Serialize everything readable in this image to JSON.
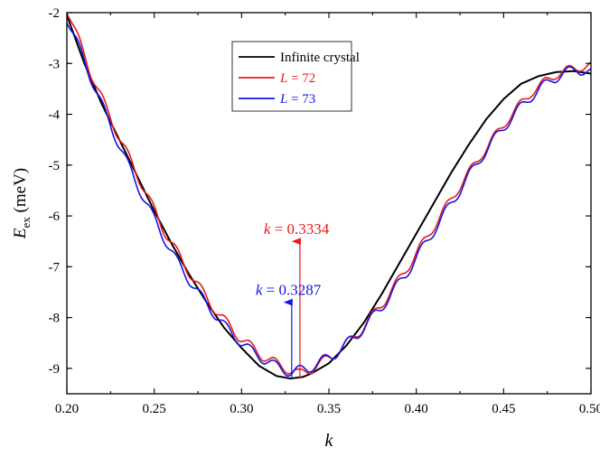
{
  "chart_data": {
    "type": "line",
    "title": "",
    "xlabel": "k",
    "ylabel_main": "E",
    "ylabel_sub": "ex",
    "ylabel_unit": "(meV)",
    "xlim": [
      0.2,
      0.5
    ],
    "ylim": [
      -9.5,
      -2
    ],
    "xticks": [
      "0.20",
      "0.25",
      "0.30",
      "0.35",
      "0.40",
      "0.45",
      "0.50"
    ],
    "xtick_values": [
      0.2,
      0.25,
      0.3,
      0.35,
      0.4,
      0.45,
      0.5
    ],
    "yticks": [
      "-2",
      "-3",
      "-4",
      "-5",
      "-6",
      "-7",
      "-8",
      "-9"
    ],
    "ytick_values": [
      -2,
      -3,
      -4,
      -5,
      -6,
      -7,
      -8,
      -9
    ],
    "grid": false,
    "legend_position": "top-center",
    "series": [
      {
        "name": "Infinite crystal",
        "color": "#000000",
        "x": [
          0.2,
          0.21,
          0.22,
          0.23,
          0.24,
          0.25,
          0.26,
          0.27,
          0.28,
          0.29,
          0.3,
          0.31,
          0.32,
          0.328,
          0.335,
          0.34,
          0.35,
          0.36,
          0.37,
          0.38,
          0.39,
          0.4,
          0.41,
          0.42,
          0.43,
          0.44,
          0.45,
          0.46,
          0.47,
          0.48,
          0.49,
          0.5
        ],
        "y": [
          -2.05,
          -3.0,
          -3.8,
          -4.5,
          -5.2,
          -5.9,
          -6.55,
          -7.15,
          -7.7,
          -8.2,
          -8.6,
          -8.95,
          -9.15,
          -9.2,
          -9.17,
          -9.1,
          -8.9,
          -8.55,
          -8.1,
          -7.55,
          -6.95,
          -6.35,
          -5.75,
          -5.15,
          -4.6,
          -4.1,
          -3.7,
          -3.4,
          -3.25,
          -3.17,
          -3.15,
          -3.2
        ]
      },
      {
        "name_prefix": "L",
        "name_suffix": " = 72",
        "color": "#e8191c",
        "x": [
          0.2,
          0.214,
          0.228,
          0.242,
          0.256,
          0.27,
          0.284,
          0.298,
          0.312,
          0.326,
          0.333,
          0.34,
          0.354,
          0.368,
          0.382,
          0.396,
          0.41,
          0.424,
          0.438,
          0.452,
          0.466,
          0.48,
          0.494,
          0.5
        ],
        "y": [
          -2.0,
          -3.3,
          -4.4,
          -5.4,
          -6.4,
          -7.2,
          -7.9,
          -8.45,
          -8.85,
          -9.1,
          -9.2,
          -9.1,
          -8.8,
          -8.35,
          -7.75,
          -7.05,
          -6.3,
          -5.55,
          -4.85,
          -4.2,
          -3.65,
          -3.3,
          -3.15,
          -3.15
        ],
        "oscillation_amplitude": 0.18,
        "oscillation_period": 0.014
      },
      {
        "name_prefix": "L",
        "name_suffix": " = 73",
        "color": "#1515e6",
        "x": [
          0.2,
          0.207,
          0.221,
          0.235,
          0.249,
          0.263,
          0.277,
          0.291,
          0.305,
          0.319,
          0.3287,
          0.338,
          0.352,
          0.366,
          0.38,
          0.394,
          0.408,
          0.422,
          0.436,
          0.45,
          0.464,
          0.478,
          0.492,
          0.5
        ],
        "y": [
          -2.2,
          -2.8,
          -4.0,
          -5.1,
          -6.1,
          -7.0,
          -7.7,
          -8.3,
          -8.75,
          -9.05,
          -9.18,
          -9.1,
          -8.85,
          -8.45,
          -7.9,
          -7.25,
          -6.5,
          -5.75,
          -5.0,
          -4.35,
          -3.8,
          -3.4,
          -3.2,
          -3.3
        ],
        "oscillation_amplitude": 0.2,
        "oscillation_period": 0.014
      }
    ],
    "annotations": [
      {
        "prefix": "k",
        "text": " = 0.3334",
        "color": "#e8191c",
        "x": 0.3334,
        "y_start": -9.2,
        "y_end": -6.5,
        "label_y": -6.35
      },
      {
        "prefix": "k",
        "text": " = 0.3287",
        "color": "#1515e6",
        "x": 0.3287,
        "y_start": -9.2,
        "y_end": -7.7,
        "label_y": -7.55
      }
    ]
  }
}
